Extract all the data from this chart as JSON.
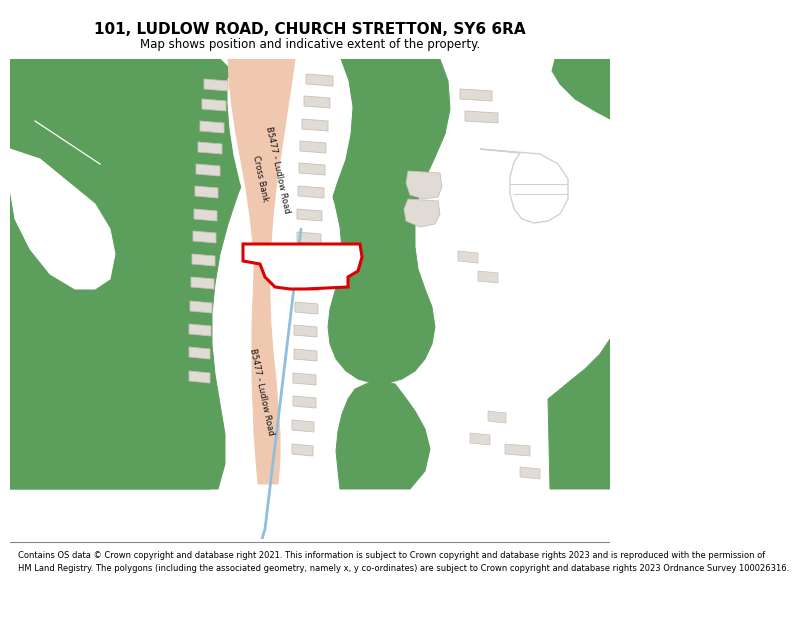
{
  "title": "101, LUDLOW ROAD, CHURCH STRETTON, SY6 6RA",
  "subtitle": "Map shows position and indicative extent of the property.",
  "footer_line1": "Contains OS data © Crown copyright and database right 2021. This information is subject to Crown copyright and database rights 2023 and is reproduced with the permission of",
  "footer_line2": "HM Land Registry. The polygons (including the associated geometry, namely x, y co-ordinates) are subject to Crown copyright and database rights 2023 Ordnance Survey 100026316.",
  "green": "#5c9e5c",
  "white": "#ffffff",
  "map_bg": "#f8f8f6",
  "road_fill": "#f0c8b0",
  "building_fill": "#e0dbd4",
  "building_edge": "#c8c0b8",
  "highlight": "#dd0000",
  "water": "#90bedd",
  "path_color": "#d8d0c8"
}
